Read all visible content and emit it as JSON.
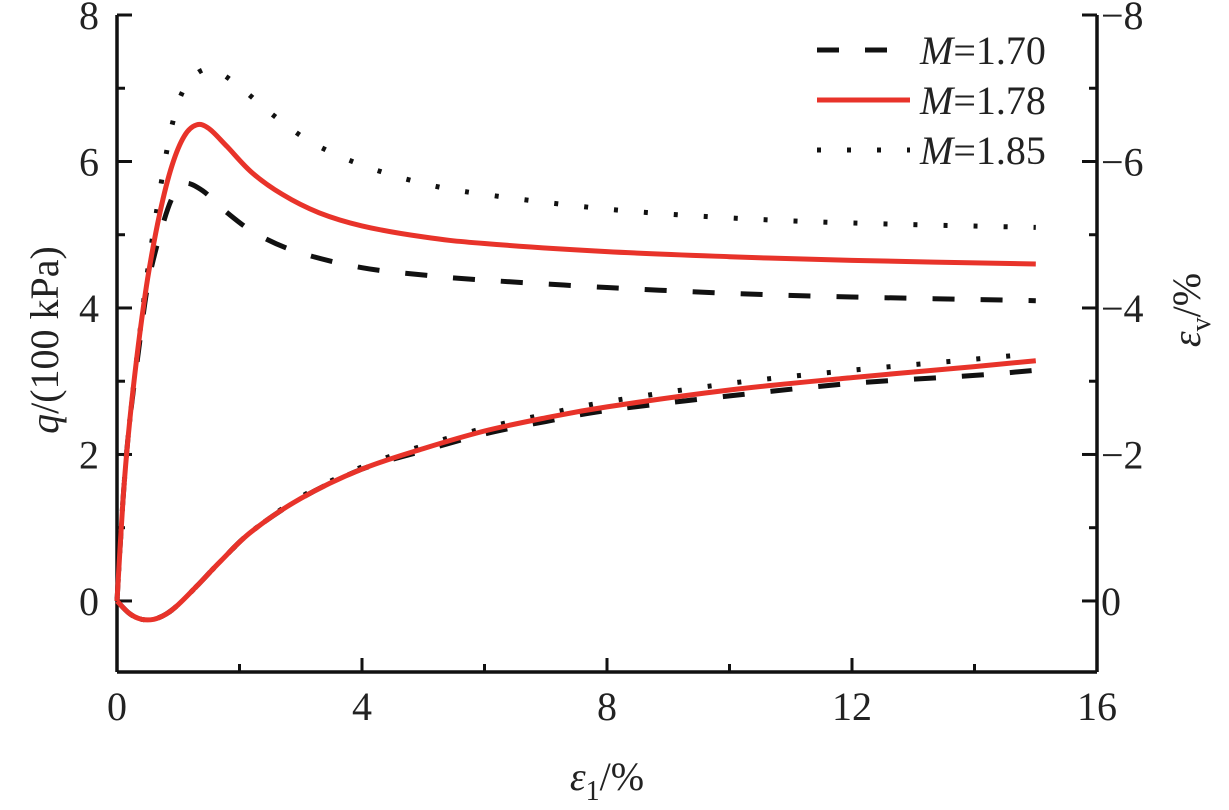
{
  "chart_data": {
    "type": "line",
    "title": "",
    "xlabel": {
      "symbol": "ε",
      "sub": "1",
      "unit": "/%"
    },
    "ylabel_left": {
      "symbol": "q",
      "unit": "/(100 kPa)"
    },
    "ylabel_right": {
      "symbol": "ε",
      "sub": "v",
      "unit": "/%"
    },
    "xlim": [
      0,
      16
    ],
    "ylim_left": [
      -0.97,
      8
    ],
    "ylim_right": [
      0.97,
      -8
    ],
    "x_ticks": [
      0,
      4,
      8,
      12,
      16
    ],
    "x_tick_labels": [
      "0",
      "4",
      "8",
      "12",
      "16"
    ],
    "x_minor_ticks": [
      2,
      6,
      10,
      14
    ],
    "y_left_ticks": [
      0,
      2,
      4,
      6,
      8
    ],
    "y_left_tick_labels": [
      "0",
      "2",
      "4",
      "6",
      "8"
    ],
    "y_left_minor_ticks": [
      1,
      3,
      5,
      7
    ],
    "y_right_ticks": [
      0,
      -2,
      -4,
      -6,
      -8
    ],
    "y_right_tick_labels": [
      "0",
      "−2",
      "−4",
      "−6",
      "−8"
    ],
    "y_right_minor_ticks": [
      -1,
      -3,
      -5,
      -7
    ],
    "grid": false,
    "legend_position": "top-right",
    "legend": [
      {
        "prefix": "M",
        "label": "=1.70",
        "style": "dashed",
        "color": "#111111"
      },
      {
        "prefix": "M",
        "label": "=1.78",
        "style": "solid",
        "color": "#e8332a"
      },
      {
        "prefix": "M",
        "label": "=1.85",
        "style": "dotted",
        "color": "#111111"
      }
    ],
    "series": [
      {
        "name": "q, M=1.70",
        "axis": "left",
        "style": "dashed",
        "color": "#111111",
        "x": [
          0,
          0.1,
          0.2,
          0.35,
          0.5,
          0.7,
          0.9,
          1.1,
          1.4,
          1.8,
          2.3,
          3,
          4,
          5,
          6,
          8,
          10,
          12,
          15
        ],
        "y": [
          0,
          1.4,
          2.4,
          3.4,
          4.3,
          5.0,
          5.5,
          5.7,
          5.6,
          5.3,
          5.0,
          4.75,
          4.55,
          4.45,
          4.38,
          4.28,
          4.2,
          4.15,
          4.1
        ]
      },
      {
        "name": "q, M=1.78",
        "axis": "left",
        "style": "solid",
        "color": "#e8332a",
        "x": [
          0,
          0.1,
          0.2,
          0.35,
          0.5,
          0.7,
          0.9,
          1.1,
          1.3,
          1.5,
          1.8,
          2.2,
          2.7,
          3.3,
          4,
          5,
          6,
          8,
          10,
          12,
          15
        ],
        "y": [
          0,
          1.4,
          2.4,
          3.5,
          4.4,
          5.3,
          5.95,
          6.35,
          6.5,
          6.45,
          6.2,
          5.85,
          5.55,
          5.3,
          5.12,
          4.97,
          4.88,
          4.77,
          4.7,
          4.65,
          4.6
        ]
      },
      {
        "name": "q, M=1.85",
        "axis": "left",
        "style": "dotted",
        "color": "#111111",
        "x": [
          0,
          0.1,
          0.2,
          0.35,
          0.5,
          0.7,
          0.9,
          1.1,
          1.4,
          1.7,
          2.1,
          2.6,
          3.2,
          4,
          5,
          6,
          8,
          10,
          12,
          15
        ],
        "y": [
          0,
          1.4,
          2.4,
          3.5,
          4.5,
          5.6,
          6.5,
          7.0,
          7.25,
          7.2,
          6.95,
          6.6,
          6.25,
          5.95,
          5.7,
          5.55,
          5.35,
          5.23,
          5.16,
          5.1
        ]
      },
      {
        "name": "εv, M=1.70",
        "axis": "right",
        "style": "dashed",
        "color": "#111111",
        "x": [
          0,
          0.2,
          0.4,
          0.6,
          0.8,
          1.0,
          1.3,
          1.7,
          2.2,
          3,
          4,
          5,
          6,
          7,
          8,
          10,
          12,
          14,
          15
        ],
        "y": [
          0,
          0.17,
          0.25,
          0.25,
          0.18,
          0.05,
          -0.2,
          -0.55,
          -0.95,
          -1.4,
          -1.8,
          -2.05,
          -2.28,
          -2.45,
          -2.6,
          -2.8,
          -2.97,
          -3.08,
          -3.15
        ]
      },
      {
        "name": "εv, M=1.78",
        "axis": "right",
        "style": "solid",
        "color": "#e8332a",
        "x": [
          0,
          0.2,
          0.4,
          0.6,
          0.8,
          1.0,
          1.3,
          1.7,
          2.2,
          3,
          4,
          5,
          6,
          7,
          8,
          10,
          12,
          14,
          15
        ],
        "y": [
          0,
          0.17,
          0.25,
          0.25,
          0.18,
          0.05,
          -0.2,
          -0.55,
          -0.95,
          -1.4,
          -1.8,
          -2.08,
          -2.32,
          -2.5,
          -2.65,
          -2.88,
          -3.05,
          -3.2,
          -3.28
        ]
      },
      {
        "name": "εv, M=1.85",
        "axis": "right",
        "style": "dotted",
        "color": "#111111",
        "x": [
          0,
          0.2,
          0.4,
          0.6,
          0.8,
          1.0,
          1.3,
          1.7,
          2.2,
          3,
          4,
          5,
          6,
          7,
          8,
          10,
          12,
          14,
          15
        ],
        "y": [
          0,
          0.17,
          0.25,
          0.25,
          0.18,
          0.05,
          -0.2,
          -0.55,
          -0.95,
          -1.42,
          -1.83,
          -2.12,
          -2.36,
          -2.55,
          -2.72,
          -2.97,
          -3.15,
          -3.3,
          -3.38
        ]
      }
    ]
  }
}
